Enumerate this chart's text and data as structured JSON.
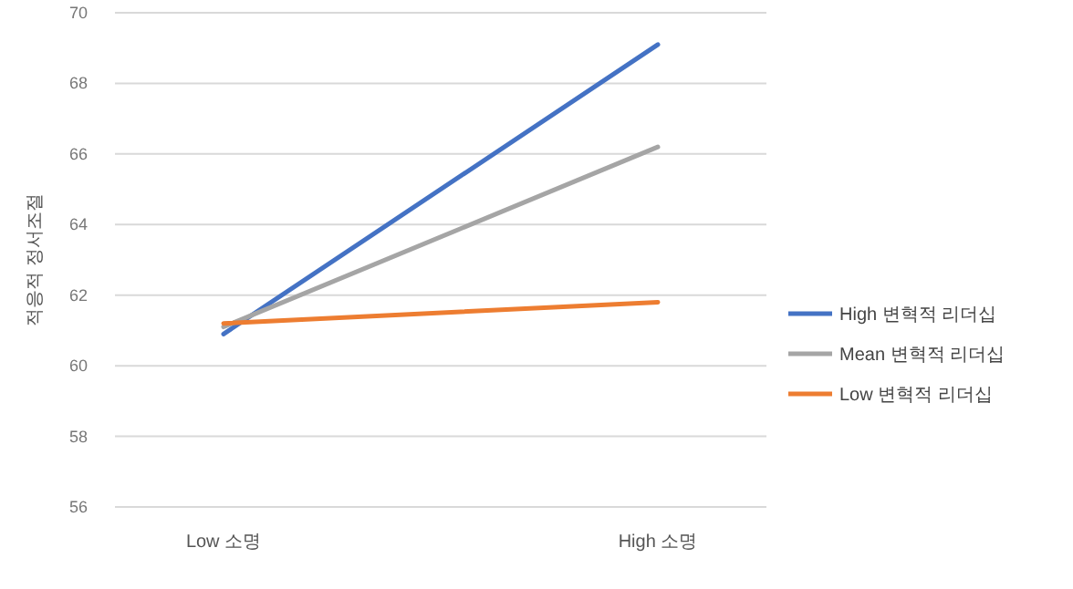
{
  "chart_data": {
    "type": "line",
    "ylabel": "적응적 정서조절",
    "categories": [
      "Low 소명",
      "High 소명"
    ],
    "series": [
      {
        "name": "High 변혁적 리더십",
        "color": "#4472c4",
        "values": [
          60.9,
          69.1
        ]
      },
      {
        "name": "Mean 변혁적 리더십",
        "color": "#a5a5a5",
        "values": [
          61.1,
          66.2
        ]
      },
      {
        "name": "Low 변혁적 리더십",
        "color": "#ed7d31",
        "values": [
          61.2,
          61.8
        ]
      }
    ],
    "ylim": [
      56,
      70
    ],
    "yticks": [
      56,
      58,
      60,
      62,
      64,
      66,
      68,
      70
    ],
    "grid": "y",
    "legend": "right",
    "marker": "none",
    "line_style": "solid"
  }
}
